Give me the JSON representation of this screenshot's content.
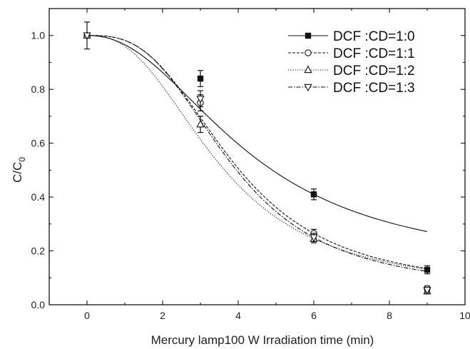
{
  "chart_data": {
    "type": "line",
    "xlabel": "Mercury lamp100 W Irradiation time (min)",
    "ylabel": "C/C",
    "ylabel_subscript": "0",
    "xlim": [
      -1,
      10
    ],
    "ylim": [
      0,
      1.1
    ],
    "xticks": [
      0,
      2,
      4,
      6,
      8,
      10
    ],
    "yticks": [
      0.0,
      0.2,
      0.4,
      0.6,
      0.8,
      1.0
    ],
    "legend_position": "top-right",
    "grid": false,
    "x": [
      0,
      3,
      6,
      9
    ],
    "series": [
      {
        "name": "DCF :CD=1:0",
        "values": [
          1.0,
          0.84,
          0.41,
          0.13
        ],
        "errors": [
          0.05,
          0.03,
          0.02,
          0.015
        ],
        "marker": "square-filled",
        "dash": "solid",
        "fit_steepness": 2.2
      },
      {
        "name": "DCF :CD=1:1",
        "values": [
          1.0,
          0.75,
          0.265,
          0.06
        ],
        "errors": [
          0.0,
          0.03,
          0.015,
          0.01
        ],
        "marker": "circle-open",
        "dash": "dashed",
        "fit_steepness": 2.9
      },
      {
        "name": "DCF :CD=1:2",
        "values": [
          1.0,
          0.67,
          0.245,
          0.05
        ],
        "errors": [
          0.0,
          0.03,
          0.015,
          0.01
        ],
        "marker": "triangle-up-open",
        "dash": "dotted",
        "fit_steepness": 2.5
      },
      {
        "name": "DCF :CD=1:3",
        "values": [
          1.0,
          0.765,
          0.25,
          0.055
        ],
        "errors": [
          0.0,
          0.03,
          0.015,
          0.01
        ],
        "marker": "triangle-down-open",
        "dash": "dashdot",
        "fit_steepness": 2.95
      }
    ]
  }
}
